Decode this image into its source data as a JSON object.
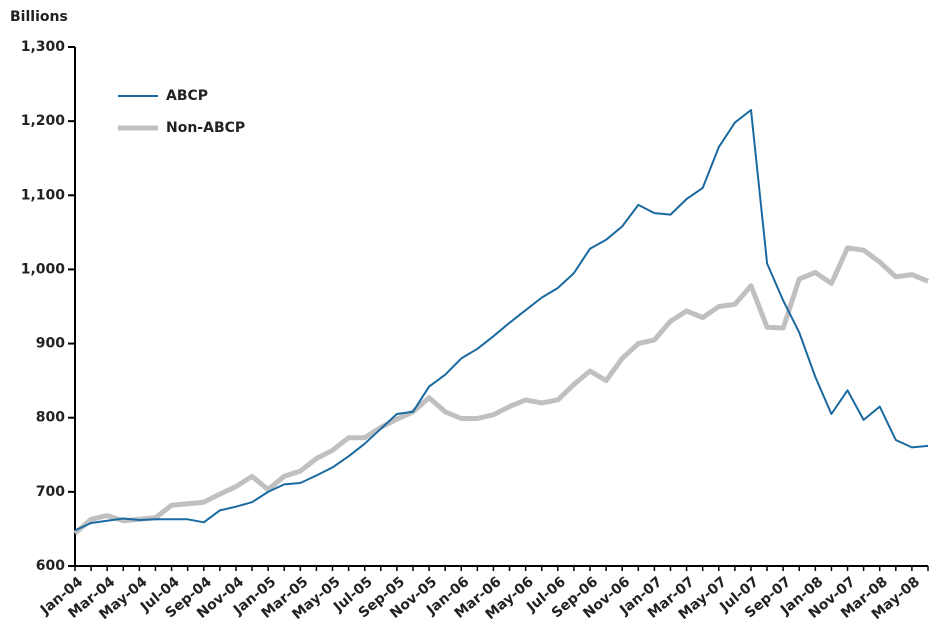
{
  "chart_data": {
    "type": "line",
    "y_label": "Billions",
    "categories": [
      "Jan-04",
      null,
      "Mar-04",
      null,
      "May-04",
      null,
      "Jul-04",
      null,
      "Sep-04",
      null,
      "Nov-04",
      null,
      "Jan-05",
      null,
      "Mar-05",
      null,
      "May-05",
      null,
      "Jul-05",
      null,
      "Sep-05",
      null,
      "Nov-05",
      null,
      "Jan-06",
      null,
      "Mar-06",
      null,
      "May-06",
      null,
      "Jul-06",
      null,
      "Sep-06",
      null,
      "Nov-06",
      null,
      "Jan-07",
      null,
      "Mar-07",
      null,
      "May-07",
      null,
      "Jul-07",
      null,
      "Sep-07",
      null,
      "Jan-08",
      null,
      "Nov-07",
      null,
      "Mar-08",
      null,
      "May-08",
      null
    ],
    "series": [
      {
        "name": "ABCP",
        "color": "#1a6aa0",
        "width": 2,
        "values": [
          648,
          658,
          661,
          664,
          662,
          663,
          663,
          663,
          659,
          675,
          680,
          686,
          700,
          710,
          712,
          722,
          733,
          748,
          765,
          785,
          805,
          808,
          842,
          858,
          880,
          893,
          910,
          928,
          945,
          962,
          975,
          995,
          1028,
          1040,
          1058,
          1087,
          1076,
          1074,
          1095,
          1110,
          1165,
          1198,
          1215,
          1008,
          958,
          915,
          855,
          805,
          837,
          797,
          815,
          770,
          760,
          762
        ]
      },
      {
        "name": "Non-ABCP",
        "color": "#c0c0c0",
        "width": 5,
        "values": [
          644,
          663,
          668,
          661,
          663,
          665,
          682,
          684,
          686,
          697,
          707,
          721,
          703,
          721,
          728,
          745,
          756,
          773,
          773,
          787,
          798,
          808,
          827,
          808,
          799,
          799,
          804,
          815,
          824,
          820,
          824,
          845,
          863,
          850,
          880,
          900,
          905,
          930,
          944,
          935,
          950,
          953,
          978,
          922,
          921,
          987,
          996,
          981,
          1029,
          1026,
          1010,
          990,
          993,
          984
        ]
      }
    ],
    "ylim": [
      600,
      1300
    ],
    "yticks": [
      600,
      700,
      800,
      900,
      {
        "value": 1000,
        "label": "1,000"
      },
      {
        "value": 1100,
        "label": "1,100"
      },
      {
        "value": 1200,
        "label": "1,200"
      },
      {
        "value": 1300,
        "label": "1,300"
      }
    ],
    "legend": "upper left"
  }
}
